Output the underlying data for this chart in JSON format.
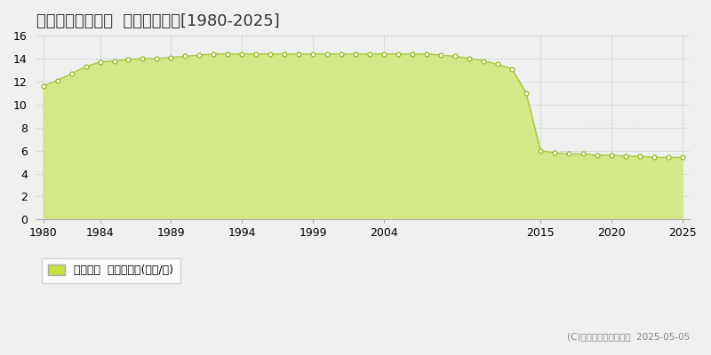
{
  "title": "鳴門市瀬戸町堂浦  公示地価推移[1980-2025]",
  "years": [
    1980,
    1981,
    1982,
    1983,
    1984,
    1985,
    1986,
    1987,
    1988,
    1989,
    1990,
    1991,
    1992,
    1993,
    1994,
    1995,
    1996,
    1997,
    1998,
    1999,
    2000,
    2001,
    2002,
    2003,
    2004,
    2005,
    2006,
    2007,
    2008,
    2009,
    2010,
    2011,
    2012,
    2013,
    2014,
    2015,
    2016,
    2017,
    2018,
    2019,
    2020,
    2021,
    2022,
    2023,
    2024,
    2025
  ],
  "values": [
    11.6,
    12.1,
    12.7,
    13.3,
    13.7,
    13.8,
    13.9,
    14.0,
    14.0,
    14.1,
    14.2,
    14.3,
    14.4,
    14.4,
    14.4,
    14.4,
    14.4,
    14.4,
    14.4,
    14.4,
    14.4,
    14.4,
    14.4,
    14.4,
    14.4,
    14.4,
    14.4,
    14.4,
    14.3,
    14.2,
    14.0,
    13.8,
    13.5,
    13.1,
    11.0,
    6.0,
    5.8,
    5.7,
    5.7,
    5.6,
    5.6,
    5.5,
    5.5,
    5.4,
    5.4,
    5.4
  ],
  "line_color": "#a8c840",
  "fill_color": "#d4e88a",
  "marker_facecolor": "#ffffff",
  "marker_edgecolor": "#a0be30",
  "bg_color": "#f0f0f0",
  "plot_bg_color": "#f0f0f0",
  "grid_color": "#cccccc",
  "ylim": [
    0,
    16
  ],
  "yticks": [
    0,
    2,
    4,
    6,
    8,
    10,
    12,
    14,
    16
  ],
  "xticks": [
    1980,
    1984,
    1989,
    1994,
    1999,
    2004,
    2015,
    2020,
    2025
  ],
  "xtick_labels": [
    "1980",
    "1984",
    "1989",
    "1994",
    "1999",
    "2004",
    "2015",
    "2020",
    "2025"
  ],
  "title_fontsize": 13,
  "tick_fontsize": 9,
  "legend_label": "公示地価  平均坪単価(万円/坪)",
  "copyright_text": "(C)土地価格ドットコム  2025-05-05",
  "legend_marker_color": "#c8e040"
}
